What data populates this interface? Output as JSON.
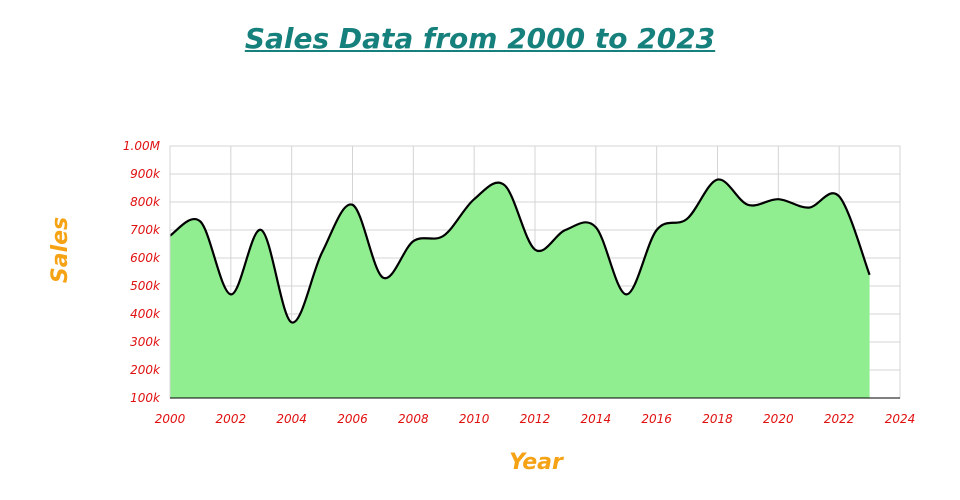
{
  "chart_data": {
    "type": "area",
    "title": "Sales Data from 2000 to 2023",
    "xlabel": "Year",
    "ylabel": "Sales",
    "xlim": [
      2000,
      2024
    ],
    "ylim": [
      100000,
      1000000
    ],
    "x_ticks": [
      "2000",
      "2002",
      "2004",
      "2006",
      "2008",
      "2010",
      "2012",
      "2014",
      "2016",
      "2018",
      "2020",
      "2022",
      "2024"
    ],
    "y_ticks": [
      "100k",
      "200k",
      "300k",
      "400k",
      "500k",
      "600k",
      "700k",
      "800k",
      "900k",
      "1.00M"
    ],
    "grid": true,
    "fill_color": "#90ee90",
    "line_color": "#000000",
    "series": [
      {
        "x": [
          2000,
          2001,
          2002,
          2003,
          2004,
          2005,
          2006,
          2007,
          2008,
          2009,
          2010,
          2011,
          2012,
          2013,
          2014,
          2015,
          2016,
          2017,
          2018,
          2019,
          2020,
          2021,
          2022,
          2023
        ],
        "values": [
          680000,
          730000,
          470000,
          700000,
          370000,
          620000,
          790000,
          530000,
          660000,
          680000,
          810000,
          860000,
          630000,
          700000,
          710000,
          470000,
          700000,
          740000,
          880000,
          790000,
          810000,
          780000,
          820000,
          540000
        ]
      }
    ]
  }
}
